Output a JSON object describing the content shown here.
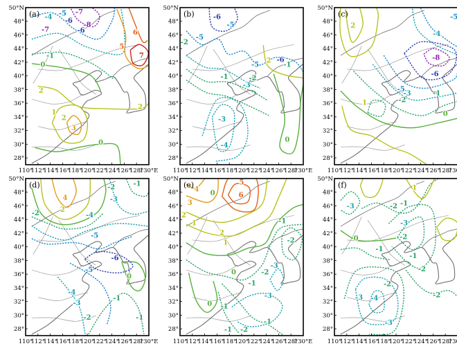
{
  "figure": {
    "panel_labels": [
      "(a)",
      "(b)",
      "(c)",
      "(d)",
      "(e)",
      "(f)"
    ]
  },
  "chart_data": [
    {
      "type": "contour",
      "panel": "(a)",
      "xlim": [
        110,
        130
      ],
      "ylim": [
        27,
        50
      ],
      "x_ticks": [
        "110°",
        "112°",
        "114°",
        "116°",
        "118°",
        "120°",
        "122°",
        "124°",
        "126°",
        "128°",
        "130°E"
      ],
      "y_ticks": [
        "50°N",
        "48°",
        "46°",
        "44°",
        "42°",
        "40°",
        "38°",
        "36°",
        "34°",
        "32°",
        "30°",
        "28°"
      ],
      "contour_labels": [
        {
          "text": "-4",
          "lon": 113.7,
          "lat": 48.6
        },
        {
          "text": "-5",
          "lon": 116.0,
          "lat": 49.1
        },
        {
          "text": "-6",
          "lon": 117.0,
          "lat": 48.0
        },
        {
          "text": "-7",
          "lon": 118.7,
          "lat": 49.3
        },
        {
          "text": "-8",
          "lon": 120.0,
          "lat": 47.4
        },
        {
          "text": "-7",
          "lon": 113.2,
          "lat": 46.7
        },
        {
          "text": "-6",
          "lon": 119.0,
          "lat": 46.6
        },
        {
          "text": "-1",
          "lon": 114.0,
          "lat": 42.9
        },
        {
          "text": "0",
          "lon": 112.8,
          "lat": 41.6
        },
        {
          "text": "6",
          "lon": 127.8,
          "lat": 46.3
        },
        {
          "text": "5",
          "lon": 125.6,
          "lat": 44.2
        },
        {
          "text": "7",
          "lon": 128.8,
          "lat": 42.9
        },
        {
          "text": "2",
          "lon": 112.5,
          "lat": 37.8
        },
        {
          "text": "3",
          "lon": 117.8,
          "lat": 32.3
        },
        {
          "text": "2",
          "lon": 116.2,
          "lat": 33.8
        },
        {
          "text": "1",
          "lon": 114.6,
          "lat": 34.6
        },
        {
          "text": "0",
          "lon": 122.2,
          "lat": 30.2
        },
        {
          "text": "2",
          "lon": 128.6,
          "lat": 35.4
        }
      ]
    },
    {
      "type": "contour",
      "panel": "(b)",
      "xlim": [
        110,
        130
      ],
      "ylim": [
        27,
        50
      ],
      "x_ticks": [
        "110°",
        "112°",
        "114°",
        "116°",
        "118°",
        "120°",
        "122°",
        "124°",
        "126°",
        "128°",
        "130°E"
      ],
      "y_ticks": [
        "50°N",
        "48°",
        "46°",
        "44°",
        "42°",
        "40°",
        "38°",
        "36°",
        "34°",
        "32°",
        "30°",
        "28°"
      ],
      "contour_labels": [
        {
          "text": "-6",
          "lon": 116.0,
          "lat": 48.6
        },
        {
          "text": "-5",
          "lon": 118.2,
          "lat": 47.4
        },
        {
          "text": "-5",
          "lon": 113.2,
          "lat": 45.6
        },
        {
          "text": "-2",
          "lon": 110.7,
          "lat": 44.9
        },
        {
          "text": "-6",
          "lon": 126.3,
          "lat": 42.3
        },
        {
          "text": "-5",
          "lon": 122.2,
          "lat": 41.6
        },
        {
          "text": "-1",
          "lon": 117.2,
          "lat": 39.8
        },
        {
          "text": "-3",
          "lon": 120.8,
          "lat": 38.6
        },
        {
          "text": "-2",
          "lon": 121.8,
          "lat": 39.6
        },
        {
          "text": "2",
          "lon": 124.4,
          "lat": 42.2
        },
        {
          "text": "-1",
          "lon": 127.4,
          "lat": 41.6
        },
        {
          "text": "-3",
          "lon": 116.8,
          "lat": 33.6
        },
        {
          "text": "-4",
          "lon": 117.2,
          "lat": 29.8
        },
        {
          "text": "0",
          "lon": 127.4,
          "lat": 30.6
        }
      ]
    },
    {
      "type": "contour",
      "panel": "(c)",
      "xlim": [
        110,
        130
      ],
      "ylim": [
        27,
        50
      ],
      "x_ticks": [
        "110°",
        "112°",
        "114°",
        "116°",
        "118°",
        "120°",
        "122°",
        "124°",
        "126°",
        "128°",
        "130°E"
      ],
      "y_ticks": [
        "50°N",
        "48°",
        "46°",
        "44°",
        "42°",
        "40°",
        "38°",
        "36°",
        "34°",
        "32°",
        "30°",
        "28°"
      ],
      "contour_labels": [
        {
          "text": "2",
          "lon": 113.0,
          "lat": 47.3
        },
        {
          "text": "-4",
          "lon": 126.6,
          "lat": 46.1
        },
        {
          "text": "-5",
          "lon": 129.4,
          "lat": 48.6
        },
        {
          "text": "-8",
          "lon": 126.5,
          "lat": 42.6
        },
        {
          "text": "-6",
          "lon": 126.3,
          "lat": 40.2
        },
        {
          "text": "-5",
          "lon": 120.8,
          "lat": 38.0
        },
        {
          "text": "-3",
          "lon": 121.8,
          "lat": 37.4
        },
        {
          "text": "-2",
          "lon": 121.0,
          "lat": 36.4
        },
        {
          "text": "1",
          "lon": 114.9,
          "lat": 36.0
        },
        {
          "text": "0",
          "lon": 128.0,
          "lat": 34.4
        },
        {
          "text": "-1",
          "lon": 126.6,
          "lat": 37.4
        }
      ]
    },
    {
      "type": "contour",
      "panel": "(d)",
      "xlim": [
        110,
        130
      ],
      "ylim": [
        27,
        50
      ],
      "x_ticks": [
        "110°",
        "112°",
        "114°",
        "116°",
        "118°",
        "120°",
        "122°",
        "124°",
        "126°",
        "128°",
        "130°E"
      ],
      "y_ticks": [
        "50°N",
        "48°",
        "46°",
        "44°",
        "42°",
        "40°",
        "38°",
        "36°",
        "34°",
        "32°",
        "30°",
        "28°"
      ],
      "contour_labels": [
        {
          "text": "-1",
          "lon": 128.1,
          "lat": 49.2
        },
        {
          "text": "-2",
          "lon": 123.9,
          "lat": 48.7
        },
        {
          "text": "-3",
          "lon": 124.3,
          "lat": 46.9
        },
        {
          "text": "4",
          "lon": 116.4,
          "lat": 47.1
        },
        {
          "text": "2",
          "lon": 116.0,
          "lat": 45.4
        },
        {
          "text": "-2",
          "lon": 111.6,
          "lat": 44.9
        },
        {
          "text": "-4",
          "lon": 120.4,
          "lat": 44.6
        },
        {
          "text": "-5",
          "lon": 121.2,
          "lat": 41.6
        },
        {
          "text": "-6",
          "lon": 124.5,
          "lat": 38.3
        },
        {
          "text": "-5",
          "lon": 120.3,
          "lat": 36.6
        },
        {
          "text": "-4",
          "lon": 117.5,
          "lat": 33.3
        },
        {
          "text": "-3",
          "lon": 118.3,
          "lat": 31.7
        },
        {
          "text": "-2",
          "lon": 120.0,
          "lat": 29.6
        },
        {
          "text": "-1",
          "lon": 124.8,
          "lat": 32.4
        },
        {
          "text": "0",
          "lon": 126.8,
          "lat": 35.6
        },
        {
          "text": "-1",
          "lon": 128.5,
          "lat": 29.6
        }
      ]
    },
    {
      "type": "contour",
      "panel": "(e)",
      "xlim": [
        110,
        130
      ],
      "ylim": [
        27,
        50
      ],
      "x_ticks": [
        "110°",
        "112°",
        "114°",
        "116°",
        "118°",
        "120°",
        "122°",
        "124°",
        "126°",
        "128°",
        "130°E"
      ],
      "y_ticks": [
        "50°N",
        "48°",
        "46°",
        "44°",
        "42°",
        "40°",
        "38°",
        "36°",
        "34°",
        "32°",
        "30°",
        "28°"
      ],
      "contour_labels": [
        {
          "text": "5",
          "lon": 120.0,
          "lat": 49.4
        },
        {
          "text": "6",
          "lon": 119.9,
          "lat": 47.5
        },
        {
          "text": "0",
          "lon": 115.3,
          "lat": 47.8
        },
        {
          "text": "4",
          "lon": 112.7,
          "lat": 48.4
        },
        {
          "text": "3",
          "lon": 111.6,
          "lat": 46.4
        },
        {
          "text": "2",
          "lon": 110.6,
          "lat": 44.6
        },
        {
          "text": "1",
          "lon": 112.3,
          "lat": 43.4
        },
        {
          "text": "2",
          "lon": 116.8,
          "lat": 42.0
        },
        {
          "text": "1",
          "lon": 117.4,
          "lat": 40.6
        },
        {
          "text": "-1",
          "lon": 126.6,
          "lat": 43.7
        },
        {
          "text": "-2",
          "lon": 128.0,
          "lat": 40.9
        },
        {
          "text": "-3",
          "lon": 125.3,
          "lat": 37.2
        },
        {
          "text": "-2",
          "lon": 123.8,
          "lat": 36.2
        },
        {
          "text": "-1",
          "lon": 121.7,
          "lat": 34.6
        },
        {
          "text": "0",
          "lon": 118.7,
          "lat": 36.2
        },
        {
          "text": "0",
          "lon": 114.8,
          "lat": 31.6
        },
        {
          "text": "-1",
          "lon": 117.2,
          "lat": 31.2
        },
        {
          "text": "-3",
          "lon": 124.3,
          "lat": 32.8
        },
        {
          "text": "-1",
          "lon": 124.2,
          "lat": 29.0
        },
        {
          "text": "-2",
          "lon": 120.4,
          "lat": 27.8
        },
        {
          "text": "-1",
          "lon": 117.8,
          "lat": 27.8
        }
      ]
    },
    {
      "type": "contour",
      "panel": "(f)",
      "xlim": [
        110,
        130
      ],
      "ylim": [
        27,
        50
      ],
      "x_ticks": [
        "110°",
        "112°",
        "114°",
        "116°",
        "118°",
        "120°",
        "122°",
        "124°",
        "126°",
        "128°",
        "130°E"
      ],
      "y_ticks": [
        "50°N",
        "48°",
        "46°",
        "44°",
        "42°",
        "40°",
        "38°",
        "36°",
        "34°",
        "32°",
        "30°",
        "28°"
      ],
      "contour_labels": [
        {
          "text": "-3",
          "lon": 112.6,
          "lat": 45.9
        },
        {
          "text": "-2",
          "lon": 119.6,
          "lat": 45.9
        },
        {
          "text": "-1",
          "lon": 121.3,
          "lat": 46.3
        },
        {
          "text": "1",
          "lon": 123.0,
          "lat": 48.6
        },
        {
          "text": "0",
          "lon": 113.5,
          "lat": 41.2
        },
        {
          "text": "-1",
          "lon": 117.3,
          "lat": 39.6
        },
        {
          "text": "-3",
          "lon": 121.3,
          "lat": 43.4
        },
        {
          "text": "-2",
          "lon": 121.2,
          "lat": 41.4
        },
        {
          "text": "-1",
          "lon": 122.8,
          "lat": 38.6
        },
        {
          "text": "-2",
          "lon": 124.2,
          "lat": 36.7
        },
        {
          "text": "-3",
          "lon": 114.0,
          "lat": 32.5
        },
        {
          "text": "-4",
          "lon": 116.5,
          "lat": 32.4
        },
        {
          "text": "-2",
          "lon": 118.6,
          "lat": 34.5
        },
        {
          "text": "-2",
          "lon": 126.6,
          "lat": 32.9
        },
        {
          "text": "-3",
          "lon": 118.8,
          "lat": 28.8
        }
      ]
    }
  ]
}
